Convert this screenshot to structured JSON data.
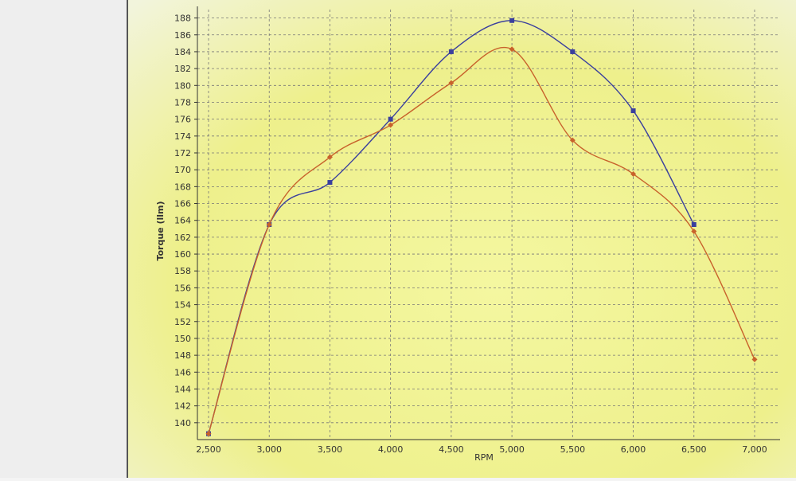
{
  "chart_data": {
    "type": "line",
    "x_label": "RPM",
    "y_label": "Torque (llm)",
    "x": [
      2500,
      3000,
      3500,
      4000,
      4500,
      5000,
      5500,
      6000,
      6500,
      7000
    ],
    "series": [
      {
        "color": "#3a3f9e",
        "marker": "square",
        "values": [
          138.7,
          163.5,
          168.5,
          176,
          184,
          187.7,
          184,
          177,
          163.5,
          null
        ]
      },
      {
        "color": "#c8622c",
        "marker": "diamond",
        "values": [
          138.7,
          163.5,
          171.5,
          175.3,
          180.3,
          184.3,
          173.5,
          169.5,
          162.7,
          147.5
        ]
      }
    ],
    "xlim": [
      2500,
      7000
    ],
    "xticks": [
      {
        "value": 2500,
        "label": "2,500"
      },
      {
        "value": 3000,
        "label": "3,000"
      },
      {
        "value": 3500,
        "label": "3,500"
      },
      {
        "value": 4000,
        "label": "4,000"
      },
      {
        "value": 4500,
        "label": "4,500"
      },
      {
        "value": 5000,
        "label": "5,000"
      },
      {
        "value": 5500,
        "label": "5,500"
      },
      {
        "value": 6000,
        "label": "6,000"
      },
      {
        "value": 6500,
        "label": "6,500"
      },
      {
        "value": 7000,
        "label": "7,000"
      }
    ],
    "ylim": [
      138,
      189
    ],
    "yticks": [
      140,
      142,
      144,
      146,
      148,
      150,
      152,
      154,
      156,
      158,
      160,
      162,
      164,
      166,
      168,
      170,
      172,
      174,
      176,
      178,
      180,
      182,
      184,
      186,
      188
    ],
    "grid": true
  }
}
